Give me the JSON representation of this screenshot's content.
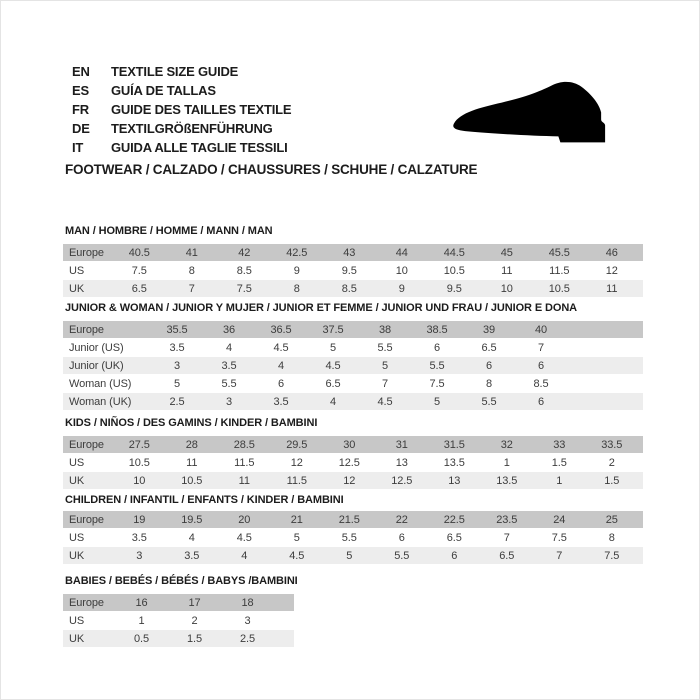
{
  "header": {
    "languages": [
      {
        "code": "EN",
        "label": "TEXTILE SIZE GUIDE"
      },
      {
        "code": "ES",
        "label": "GUÍA DE TALLAS"
      },
      {
        "code": "FR",
        "label": "GUIDE DES TAILLES TEXTILE"
      },
      {
        "code": "DE",
        "label": "TEXTILGRÖßENFÜHRUNG"
      },
      {
        "code": "IT",
        "label": "GUIDA ALLE TAGLIE TESSILI"
      }
    ],
    "category_line": "FOOTWEAR / CALZADO / CHAUSSURES / SCHUHE / CALZATURE",
    "icon": "dress-shoe-silhouette"
  },
  "colors": {
    "head_row_bg": "#c7c7c7",
    "alt_row_bg": "#ededed",
    "cell_text": "#3d3d3d",
    "title_text": "#1c1c1c",
    "icon_color": "#000000"
  },
  "chart_data": {
    "type": "table",
    "note": "footwear size conversion tables, see tables[]"
  },
  "tables": [
    {
      "title": "MAN / HOMBRE / HOMME / MANN / MAN",
      "rows": [
        {
          "label": "Europe",
          "values": [
            "40.5",
            "41",
            "42",
            "42.5",
            "43",
            "44",
            "44.5",
            "45",
            "45.5",
            "46"
          ]
        },
        {
          "label": "US",
          "values": [
            "7.5",
            "8",
            "8.5",
            "9",
            "9.5",
            "10",
            "10.5",
            "11",
            "11.5",
            "12"
          ]
        },
        {
          "label": "UK",
          "values": [
            "6.5",
            "7",
            "7.5",
            "8",
            "8.5",
            "9",
            "9.5",
            "10",
            "10.5",
            "11"
          ]
        }
      ]
    },
    {
      "title": "JUNIOR & WOMAN / JUNIOR Y MUJER / JUNIOR ET FEMME / JUNIOR UND FRAU / JUNIOR E DONA",
      "rows": [
        {
          "label": "Europe",
          "values": [
            "35.5",
            "36",
            "36.5",
            "37.5",
            "38",
            "38.5",
            "39",
            "40"
          ]
        },
        {
          "label": "Junior (US)",
          "values": [
            "3.5",
            "4",
            "4.5",
            "5",
            "5.5",
            "6",
            "6.5",
            "7"
          ]
        },
        {
          "label": "Junior (UK)",
          "values": [
            "3",
            "3.5",
            "4",
            "4.5",
            "5",
            "5.5",
            "6",
            "6"
          ]
        },
        {
          "label": "Woman (US)",
          "values": [
            "5",
            "5.5",
            "6",
            "6.5",
            "7",
            "7.5",
            "8",
            "8.5"
          ]
        },
        {
          "label": "Woman (UK)",
          "values": [
            "2.5",
            "3",
            "3.5",
            "4",
            "4.5",
            "5",
            "5.5",
            "6"
          ]
        }
      ]
    },
    {
      "title": "KIDS / NIÑOS / DES GAMINS / KINDER / BAMBINI",
      "rows": [
        {
          "label": "Europe",
          "values": [
            "27.5",
            "28",
            "28.5",
            "29.5",
            "30",
            "31",
            "31.5",
            "32",
            "33",
            "33.5"
          ]
        },
        {
          "label": "US",
          "values": [
            "10.5",
            "11",
            "11.5",
            "12",
            "12.5",
            "13",
            "13.5",
            "1",
            "1.5",
            "2"
          ]
        },
        {
          "label": "UK",
          "values": [
            "10",
            "10.5",
            "11",
            "11.5",
            "12",
            "12.5",
            "13",
            "13.5",
            "1",
            "1.5"
          ]
        }
      ]
    },
    {
      "title": "CHILDREN / INFANTIL / ENFANTS / KINDER / BAMBINI",
      "rows": [
        {
          "label": "Europe",
          "values": [
            "19",
            "19.5",
            "20",
            "21",
            "21.5",
            "22",
            "22.5",
            "23.5",
            "24",
            "25"
          ]
        },
        {
          "label": "US",
          "values": [
            "3.5",
            "4",
            "4.5",
            "5",
            "5.5",
            "6",
            "6.5",
            "7",
            "7.5",
            "8"
          ]
        },
        {
          "label": "UK",
          "values": [
            "3",
            "3.5",
            "4",
            "4.5",
            "5",
            "5.5",
            "6",
            "6.5",
            "7",
            "7.5"
          ]
        }
      ]
    },
    {
      "title": "BABIES  / BEBÉS / BÉBÉS / BABYS /BAMBINI",
      "rows": [
        {
          "label": "Europe",
          "values": [
            "16",
            "17",
            "18"
          ]
        },
        {
          "label": "US",
          "values": [
            "1",
            "2",
            "3"
          ]
        },
        {
          "label": "UK",
          "values": [
            "0.5",
            "1.5",
            "2.5"
          ]
        }
      ]
    }
  ]
}
